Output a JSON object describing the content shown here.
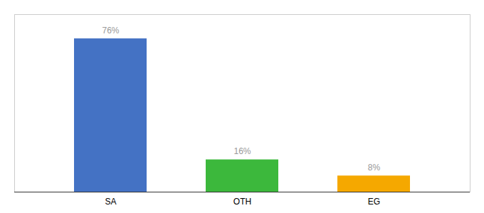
{
  "chart_data": {
    "type": "bar",
    "categories": [
      "SA",
      "OTH",
      "EG"
    ],
    "values": [
      76,
      16,
      8
    ],
    "value_labels": [
      "76%",
      "16%",
      "8%"
    ],
    "colors": [
      "#4472c4",
      "#3cb83c",
      "#f5a800"
    ],
    "ylim": [
      0,
      88
    ],
    "data_labels": true,
    "tick_labels": "x",
    "grid": false
  }
}
